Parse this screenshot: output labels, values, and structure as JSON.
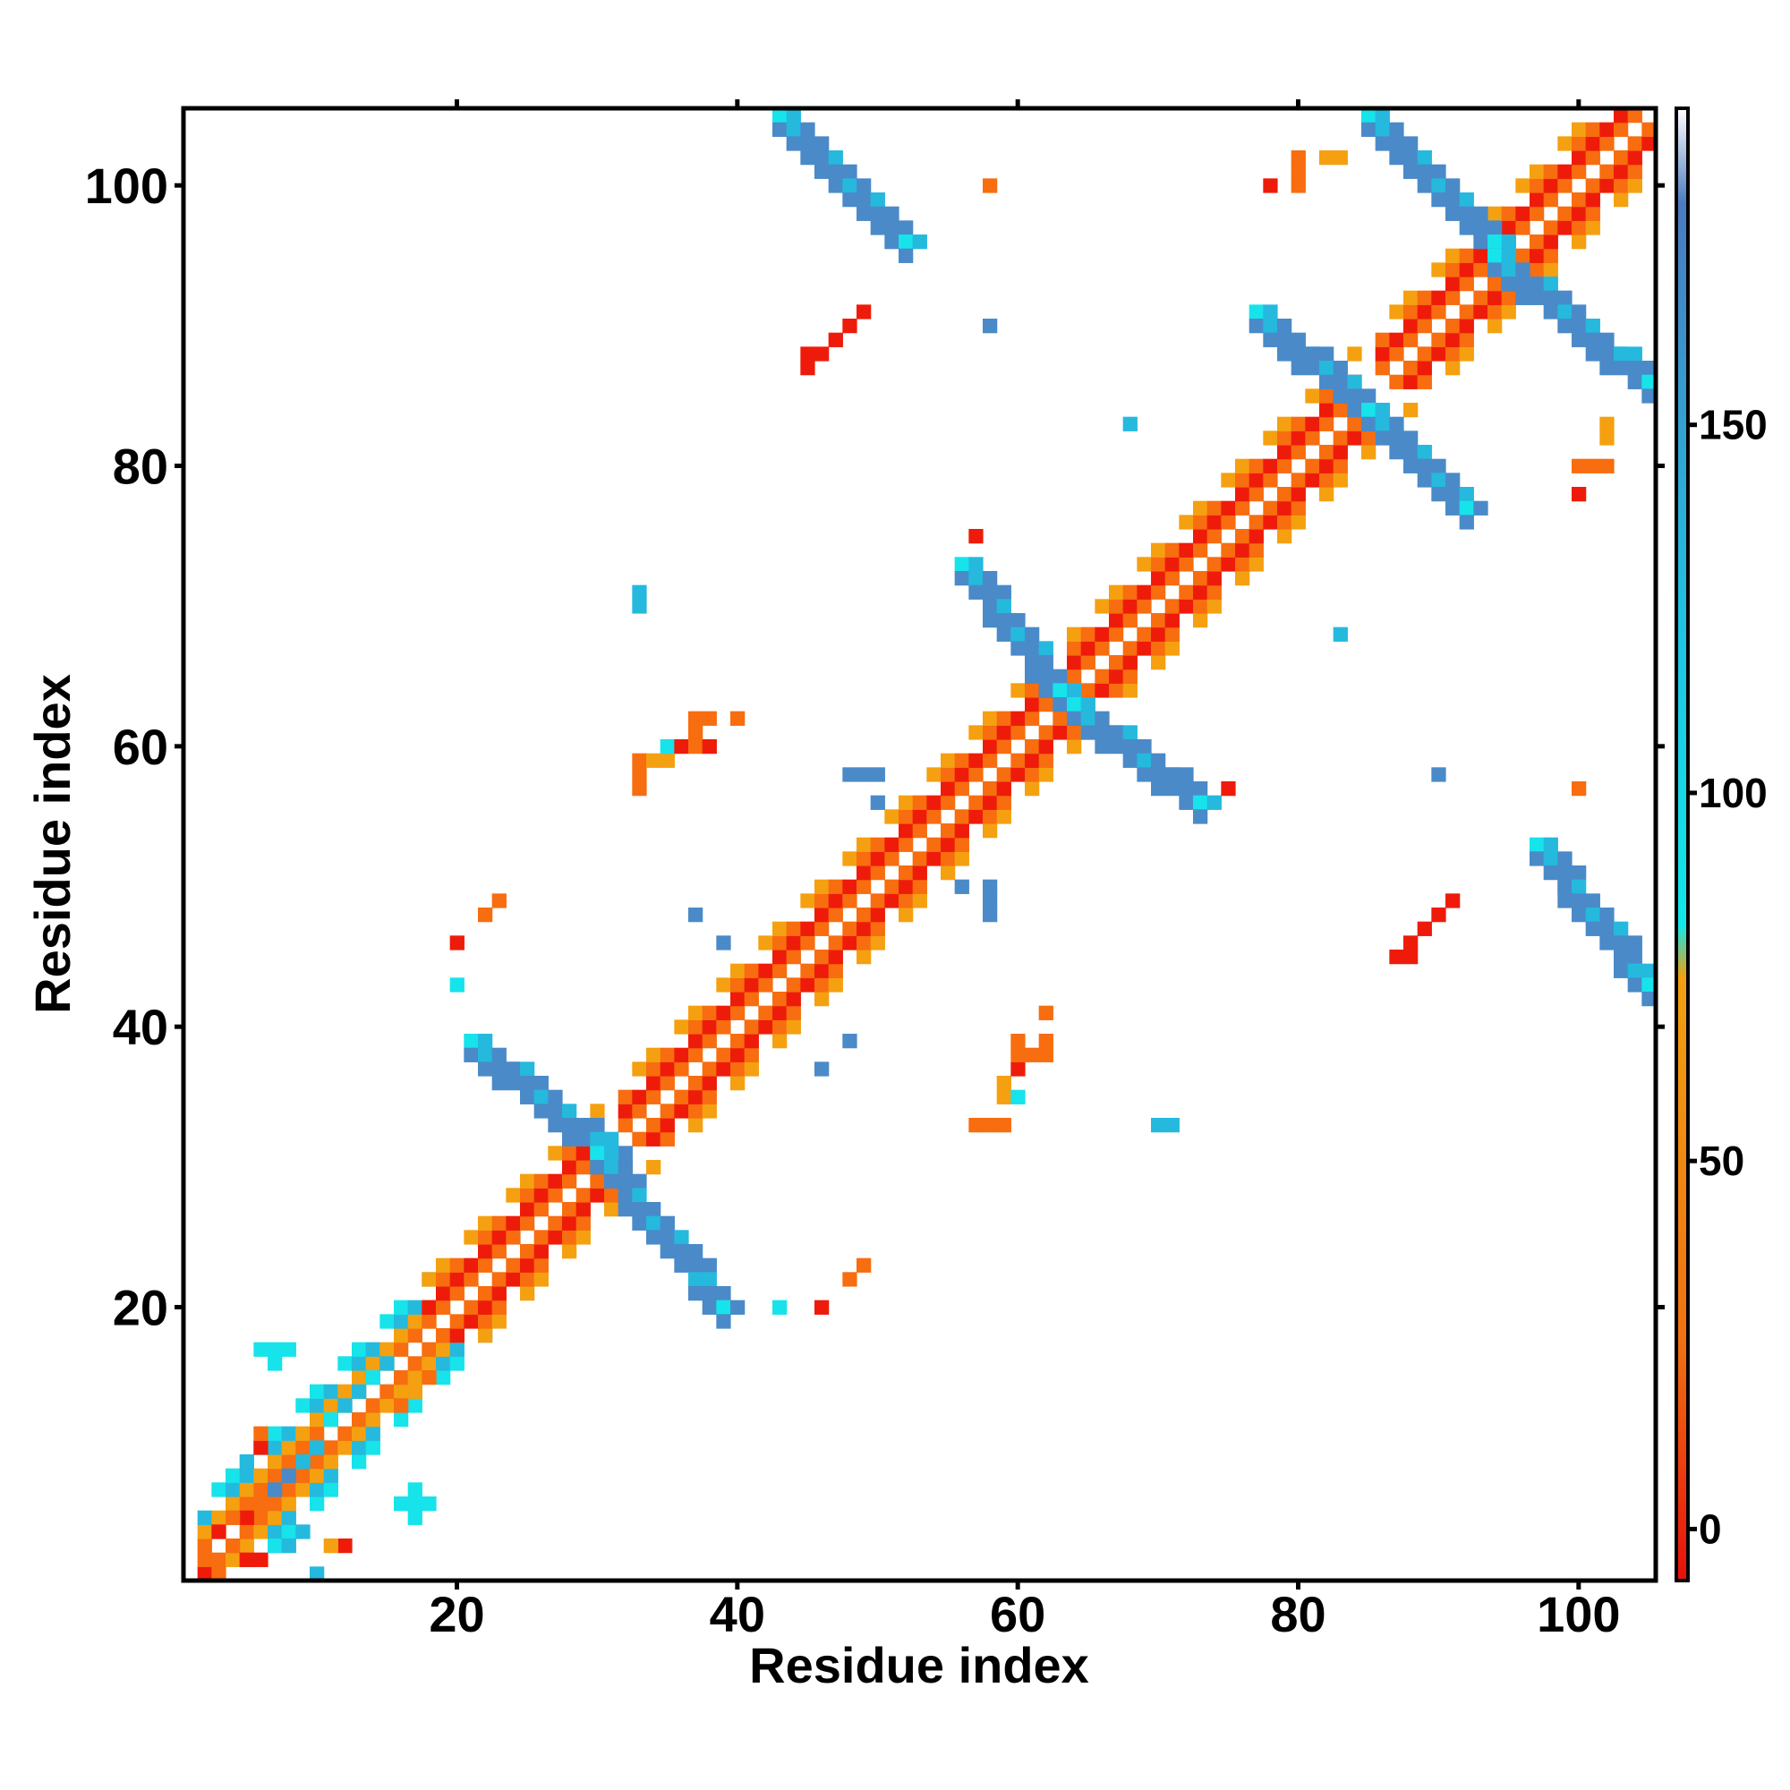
{
  "chart_data": {
    "type": "heatmap",
    "title": "",
    "xlabel": "Residue index",
    "ylabel": "Residue index",
    "xlim": [
      1,
      105
    ],
    "ylim": [
      1,
      105
    ],
    "x_ticks": [
      20,
      40,
      60,
      80,
      100
    ],
    "y_ticks": [
      20,
      40,
      60,
      80,
      100
    ],
    "x_tick_labels": [
      "20",
      "40",
      "60",
      "80",
      "100"
    ],
    "y_tick_labels": [
      "20",
      "40",
      "60",
      "80",
      "100"
    ],
    "grid": false,
    "colorbar": {
      "ticks": [
        0,
        50,
        100,
        150
      ],
      "tick_labels": [
        "0",
        "50",
        "100",
        "150"
      ],
      "range": [
        -7,
        193
      ],
      "stops": [
        {
          "value": -7,
          "color": "#e8100c"
        },
        {
          "value": 25,
          "color": "#f07010"
        },
        {
          "value": 75,
          "color": "#f0a010"
        },
        {
          "value": 82,
          "color": "#10e8e8"
        },
        {
          "value": 125,
          "color": "#20c0e0"
        },
        {
          "value": 180,
          "color": "#4a7bbf"
        },
        {
          "value": 193,
          "color": "#ffffff"
        }
      ]
    },
    "categories_colors": {
      "red": "#ee1b0a",
      "orange": "#f76d0f",
      "amber": "#f5a010",
      "cyan": "#17e3ea",
      "teal": "#25b9de",
      "blue": "#4a8ac8"
    },
    "diagonal": [
      {
        "from": 2,
        "to": 18,
        "pattern": "mixed"
      },
      {
        "from": 18,
        "to": 30,
        "pattern": "helix"
      },
      {
        "from": 32,
        "to": 42,
        "pattern": "helix"
      },
      {
        "from": 43,
        "to": 62,
        "pattern": "helix"
      },
      {
        "from": 64,
        "to": 84,
        "pattern": "helix"
      },
      {
        "from": 86,
        "to": 104,
        "pattern": "helix"
      }
    ],
    "sheet_bands": [
      {
        "from": [
          21,
          39
        ],
        "to": [
          31,
          31
        ],
        "color": "blue"
      },
      {
        "from": [
          30,
          31
        ],
        "to": [
          39,
          20
        ],
        "color": "blue"
      },
      {
        "from": [
          56,
          73
        ],
        "to": [
          63,
          64
        ],
        "color": "blue"
      },
      {
        "from": [
          64,
          63
        ],
        "to": [
          73,
          56
        ],
        "color": "blue"
      },
      {
        "from": [
          43,
          105
        ],
        "to": [
          52,
          96
        ],
        "color": "blue"
      },
      {
        "from": [
          77,
          91
        ],
        "to": [
          85,
          84
        ],
        "color": "blue"
      },
      {
        "from": [
          85,
          84
        ],
        "to": [
          92,
          77
        ],
        "color": "blue"
      },
      {
        "from": [
          85,
          105
        ],
        "to": [
          94,
          96
        ],
        "color": "blue"
      },
      {
        "from": [
          94,
          95
        ],
        "to": [
          105,
          86
        ],
        "color": "blue"
      },
      {
        "from": [
          97,
          53
        ],
        "to": [
          105,
          43
        ],
        "color": "blue"
      }
    ],
    "points": [
      {
        "x": 2,
        "y": 1,
        "c": "red"
      },
      {
        "x": 3,
        "y": 1,
        "c": "orange"
      },
      {
        "x": 2,
        "y": 2,
        "c": "orange"
      },
      {
        "x": 3,
        "y": 4,
        "c": "red"
      },
      {
        "x": 4,
        "y": 3,
        "c": "orange"
      },
      {
        "x": 5,
        "y": 2,
        "c": "red"
      },
      {
        "x": 6,
        "y": 2,
        "c": "red"
      },
      {
        "x": 5,
        "y": 5,
        "c": "red"
      },
      {
        "x": 4,
        "y": 5,
        "c": "orange"
      },
      {
        "x": 7,
        "y": 3,
        "c": "cyan"
      },
      {
        "x": 8,
        "y": 3,
        "c": "teal"
      },
      {
        "x": 9,
        "y": 4,
        "c": "teal"
      },
      {
        "x": 10,
        "y": 1,
        "c": "teal"
      },
      {
        "x": 5,
        "y": 9,
        "c": "teal"
      },
      {
        "x": 6,
        "y": 6,
        "c": "orange"
      },
      {
        "x": 6,
        "y": 10,
        "c": "red"
      },
      {
        "x": 6,
        "y": 11,
        "c": "orange"
      },
      {
        "x": 12,
        "y": 3,
        "c": "red"
      },
      {
        "x": 11,
        "y": 3,
        "c": "amber"
      },
      {
        "x": 7,
        "y": 17,
        "c": "cyan"
      },
      {
        "x": 7,
        "y": 16,
        "c": "cyan"
      },
      {
        "x": 6,
        "y": 17,
        "c": "cyan"
      },
      {
        "x": 8,
        "y": 17,
        "c": "cyan"
      },
      {
        "x": 17,
        "y": 6,
        "c": "cyan"
      },
      {
        "x": 16,
        "y": 6,
        "c": "cyan"
      },
      {
        "x": 18,
        "y": 6,
        "c": "cyan"
      },
      {
        "x": 17,
        "y": 7,
        "c": "cyan"
      },
      {
        "x": 17,
        "y": 5,
        "c": "cyan"
      },
      {
        "x": 7,
        "y": 7,
        "c": "blue"
      },
      {
        "x": 8,
        "y": 8,
        "c": "blue"
      },
      {
        "x": 9,
        "y": 9,
        "c": "teal"
      },
      {
        "x": 10,
        "y": 10,
        "c": "teal"
      },
      {
        "x": 11,
        "y": 12,
        "c": "cyan"
      },
      {
        "x": 12,
        "y": 13,
        "c": "teal"
      },
      {
        "x": 13,
        "y": 14,
        "c": "teal"
      },
      {
        "x": 14,
        "y": 15,
        "c": "cyan"
      },
      {
        "x": 15,
        "y": 16,
        "c": "teal"
      },
      {
        "x": 16,
        "y": 13,
        "c": "orange"
      },
      {
        "x": 17,
        "y": 14,
        "c": "amber"
      },
      {
        "x": 18,
        "y": 15,
        "c": "orange"
      },
      {
        "x": 23,
        "y": 49,
        "c": "orange"
      },
      {
        "x": 22,
        "y": 48,
        "c": "orange"
      },
      {
        "x": 20,
        "y": 46,
        "c": "red"
      },
      {
        "x": 20,
        "y": 43,
        "c": "cyan"
      },
      {
        "x": 33,
        "y": 70,
        "c": "teal"
      },
      {
        "x": 33,
        "y": 71,
        "c": "teal"
      },
      {
        "x": 33,
        "y": 57,
        "c": "orange"
      },
      {
        "x": 33,
        "y": 58,
        "c": "orange"
      },
      {
        "x": 33,
        "y": 59,
        "c": "orange"
      },
      {
        "x": 34,
        "y": 59,
        "c": "amber"
      },
      {
        "x": 35,
        "y": 59,
        "c": "amber"
      },
      {
        "x": 35,
        "y": 60,
        "c": "cyan"
      },
      {
        "x": 36,
        "y": 60,
        "c": "red"
      },
      {
        "x": 37,
        "y": 60,
        "c": "orange"
      },
      {
        "x": 38,
        "y": 60,
        "c": "red"
      },
      {
        "x": 37,
        "y": 61,
        "c": "orange"
      },
      {
        "x": 38,
        "y": 62,
        "c": "orange"
      },
      {
        "x": 37,
        "y": 62,
        "c": "orange"
      },
      {
        "x": 40,
        "y": 62,
        "c": "orange"
      },
      {
        "x": 37,
        "y": 48,
        "c": "blue"
      },
      {
        "x": 39,
        "y": 46,
        "c": "blue"
      },
      {
        "x": 48,
        "y": 39,
        "c": "blue"
      },
      {
        "x": 46,
        "y": 37,
        "c": "blue"
      },
      {
        "x": 43,
        "y": 20,
        "c": "cyan"
      },
      {
        "x": 46,
        "y": 20,
        "c": "red"
      },
      {
        "x": 48,
        "y": 22,
        "c": "orange"
      },
      {
        "x": 49,
        "y": 23,
        "c": "orange"
      },
      {
        "x": 45,
        "y": 87,
        "c": "red"
      },
      {
        "x": 45,
        "y": 88,
        "c": "red"
      },
      {
        "x": 46,
        "y": 88,
        "c": "red"
      },
      {
        "x": 47,
        "y": 89,
        "c": "red"
      },
      {
        "x": 48,
        "y": 90,
        "c": "red"
      },
      {
        "x": 49,
        "y": 91,
        "c": "red"
      },
      {
        "x": 48,
        "y": 58,
        "c": "blue"
      },
      {
        "x": 49,
        "y": 58,
        "c": "blue"
      },
      {
        "x": 50,
        "y": 58,
        "c": "blue"
      },
      {
        "x": 50,
        "y": 56,
        "c": "blue"
      },
      {
        "x": 56,
        "y": 50,
        "c": "blue"
      },
      {
        "x": 58,
        "y": 50,
        "c": "blue"
      },
      {
        "x": 58,
        "y": 49,
        "c": "blue"
      },
      {
        "x": 58,
        "y": 48,
        "c": "blue"
      },
      {
        "x": 57,
        "y": 75,
        "c": "red"
      },
      {
        "x": 58,
        "y": 100,
        "c": "orange"
      },
      {
        "x": 58,
        "y": 90,
        "c": "blue"
      },
      {
        "x": 57,
        "y": 33,
        "c": "orange"
      },
      {
        "x": 58,
        "y": 33,
        "c": "orange"
      },
      {
        "x": 59,
        "y": 33,
        "c": "orange"
      },
      {
        "x": 59,
        "y": 35,
        "c": "amber"
      },
      {
        "x": 59,
        "y": 36,
        "c": "amber"
      },
      {
        "x": 60,
        "y": 35,
        "c": "cyan"
      },
      {
        "x": 60,
        "y": 37,
        "c": "red"
      },
      {
        "x": 60,
        "y": 38,
        "c": "orange"
      },
      {
        "x": 60,
        "y": 39,
        "c": "orange"
      },
      {
        "x": 61,
        "y": 38,
        "c": "orange"
      },
      {
        "x": 62,
        "y": 38,
        "c": "orange"
      },
      {
        "x": 62,
        "y": 39,
        "c": "orange"
      },
      {
        "x": 62,
        "y": 41,
        "c": "orange"
      },
      {
        "x": 70,
        "y": 33,
        "c": "teal"
      },
      {
        "x": 71,
        "y": 33,
        "c": "teal"
      },
      {
        "x": 68,
        "y": 83,
        "c": "teal"
      },
      {
        "x": 75,
        "y": 57,
        "c": "red"
      },
      {
        "x": 78,
        "y": 100,
        "c": "red"
      },
      {
        "x": 80,
        "y": 100,
        "c": "orange"
      },
      {
        "x": 80,
        "y": 101,
        "c": "orange"
      },
      {
        "x": 80,
        "y": 102,
        "c": "orange"
      },
      {
        "x": 82,
        "y": 102,
        "c": "amber"
      },
      {
        "x": 83,
        "y": 102,
        "c": "amber"
      },
      {
        "x": 83,
        "y": 68,
        "c": "teal"
      },
      {
        "x": 90,
        "y": 58,
        "c": "blue"
      },
      {
        "x": 88,
        "y": 45,
        "c": "red"
      },
      {
        "x": 87,
        "y": 45,
        "c": "red"
      },
      {
        "x": 89,
        "y": 47,
        "c": "red"
      },
      {
        "x": 88,
        "y": 46,
        "c": "red"
      },
      {
        "x": 90,
        "y": 48,
        "c": "red"
      },
      {
        "x": 91,
        "y": 49,
        "c": "red"
      },
      {
        "x": 100,
        "y": 57,
        "c": "orange"
      },
      {
        "x": 100,
        "y": 78,
        "c": "red"
      },
      {
        "x": 100,
        "y": 80,
        "c": "orange"
      },
      {
        "x": 101,
        "y": 80,
        "c": "orange"
      },
      {
        "x": 102,
        "y": 80,
        "c": "orange"
      },
      {
        "x": 102,
        "y": 82,
        "c": "amber"
      },
      {
        "x": 102,
        "y": 83,
        "c": "amber"
      }
    ]
  }
}
